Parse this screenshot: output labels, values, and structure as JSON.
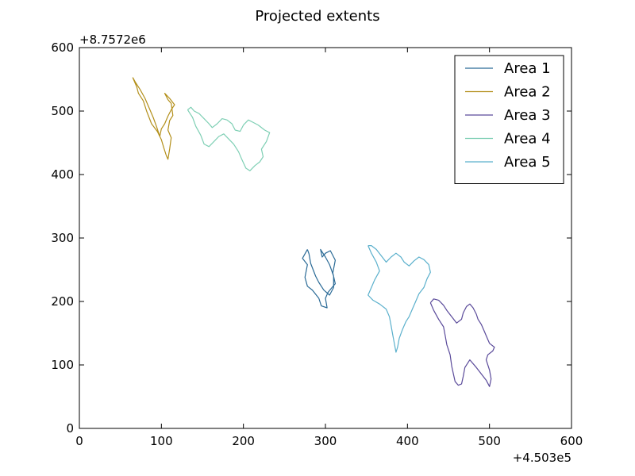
{
  "chart_data": {
    "type": "line",
    "title": "Projected extents",
    "xlabel": "",
    "ylabel": "",
    "xlim": [
      0,
      600
    ],
    "ylim": [
      0,
      600
    ],
    "x_ticks": [
      0,
      100,
      200,
      300,
      400,
      500,
      600
    ],
    "y_ticks": [
      0,
      100,
      200,
      300,
      400,
      500,
      600
    ],
    "x_offset_label": "+4.503e5",
    "y_offset_label": "+8.7572e6",
    "grid": false,
    "legend_position": "top-right",
    "series": [
      {
        "name": "Area 1",
        "color": "#2a6a96",
        "points": [
          [
            278,
            282
          ],
          [
            272,
            268
          ],
          [
            278,
            258
          ],
          [
            275,
            238
          ],
          [
            278,
            224
          ],
          [
            284,
            218
          ],
          [
            292,
            205
          ],
          [
            295,
            193
          ],
          [
            302,
            190
          ],
          [
            300,
            205
          ],
          [
            303,
            214
          ],
          [
            308,
            222
          ],
          [
            312,
            228
          ],
          [
            309,
            245
          ],
          [
            312,
            265
          ],
          [
            306,
            280
          ],
          [
            300,
            276
          ],
          [
            296,
            270
          ],
          [
            294,
            282
          ],
          [
            300,
            270
          ],
          [
            305,
            258
          ],
          [
            310,
            240
          ],
          [
            310,
            222
          ],
          [
            305,
            210
          ],
          [
            298,
            218
          ],
          [
            292,
            230
          ],
          [
            288,
            240
          ],
          [
            282,
            260
          ],
          [
            280,
            275
          ],
          [
            278,
            282
          ]
        ]
      },
      {
        "name": "Area 2",
        "color": "#b38f1a",
        "points": [
          [
            65,
            553
          ],
          [
            70,
            538
          ],
          [
            72,
            528
          ],
          [
            78,
            516
          ],
          [
            82,
            500
          ],
          [
            88,
            480
          ],
          [
            95,
            468
          ],
          [
            100,
            455
          ],
          [
            103,
            442
          ],
          [
            106,
            430
          ],
          [
            108,
            424
          ],
          [
            110,
            440
          ],
          [
            112,
            458
          ],
          [
            108,
            470
          ],
          [
            110,
            485
          ],
          [
            114,
            493
          ],
          [
            112,
            512
          ],
          [
            108,
            518
          ],
          [
            104,
            528
          ],
          [
            110,
            520
          ],
          [
            116,
            510
          ],
          [
            112,
            502
          ],
          [
            108,
            492
          ],
          [
            104,
            480
          ],
          [
            100,
            472
          ],
          [
            98,
            460
          ],
          [
            94,
            476
          ],
          [
            90,
            490
          ],
          [
            86,
            502
          ],
          [
            80,
            520
          ],
          [
            74,
            534
          ],
          [
            68,
            546
          ],
          [
            65,
            553
          ]
        ]
      },
      {
        "name": "Area 3",
        "color": "#5a4a9a",
        "points": [
          [
            428,
            198
          ],
          [
            432,
            186
          ],
          [
            438,
            172
          ],
          [
            444,
            160
          ],
          [
            446,
            146
          ],
          [
            448,
            132
          ],
          [
            452,
            116
          ],
          [
            454,
            98
          ],
          [
            456,
            86
          ],
          [
            458,
            74
          ],
          [
            462,
            68
          ],
          [
            466,
            70
          ],
          [
            468,
            82
          ],
          [
            470,
            96
          ],
          [
            476,
            108
          ],
          [
            484,
            96
          ],
          [
            490,
            86
          ],
          [
            496,
            76
          ],
          [
            500,
            66
          ],
          [
            502,
            78
          ],
          [
            500,
            92
          ],
          [
            496,
            108
          ],
          [
            498,
            116
          ],
          [
            504,
            122
          ],
          [
            506,
            128
          ],
          [
            500,
            134
          ],
          [
            498,
            140
          ],
          [
            494,
            152
          ],
          [
            490,
            164
          ],
          [
            486,
            172
          ],
          [
            484,
            180
          ],
          [
            480,
            190
          ],
          [
            476,
            196
          ],
          [
            472,
            192
          ],
          [
            468,
            182
          ],
          [
            466,
            172
          ],
          [
            460,
            166
          ],
          [
            454,
            176
          ],
          [
            448,
            186
          ],
          [
            444,
            194
          ],
          [
            438,
            202
          ],
          [
            432,
            204
          ],
          [
            428,
            198
          ]
        ]
      },
      {
        "name": "Area 4",
        "color": "#7ecfb4",
        "points": [
          [
            132,
            502
          ],
          [
            138,
            490
          ],
          [
            142,
            476
          ],
          [
            148,
            462
          ],
          [
            152,
            448
          ],
          [
            158,
            444
          ],
          [
            164,
            452
          ],
          [
            170,
            460
          ],
          [
            176,
            464
          ],
          [
            182,
            456
          ],
          [
            188,
            448
          ],
          [
            194,
            436
          ],
          [
            198,
            424
          ],
          [
            203,
            410
          ],
          [
            208,
            406
          ],
          [
            214,
            414
          ],
          [
            220,
            420
          ],
          [
            224,
            428
          ],
          [
            222,
            440
          ],
          [
            228,
            452
          ],
          [
            232,
            466
          ],
          [
            226,
            470
          ],
          [
            218,
            478
          ],
          [
            212,
            482
          ],
          [
            206,
            486
          ],
          [
            200,
            478
          ],
          [
            196,
            468
          ],
          [
            190,
            470
          ],
          [
            186,
            480
          ],
          [
            180,
            486
          ],
          [
            174,
            488
          ],
          [
            168,
            480
          ],
          [
            162,
            474
          ],
          [
            158,
            480
          ],
          [
            152,
            488
          ],
          [
            146,
            496
          ],
          [
            140,
            500
          ],
          [
            136,
            506
          ],
          [
            132,
            502
          ]
        ]
      },
      {
        "name": "Area 5",
        "color": "#5bb0cc",
        "points": [
          [
            352,
            288
          ],
          [
            356,
            276
          ],
          [
            362,
            262
          ],
          [
            366,
            248
          ],
          [
            360,
            234
          ],
          [
            356,
            222
          ],
          [
            352,
            210
          ],
          [
            358,
            202
          ],
          [
            366,
            196
          ],
          [
            374,
            188
          ],
          [
            378,
            176
          ],
          [
            380,
            162
          ],
          [
            382,
            148
          ],
          [
            384,
            134
          ],
          [
            386,
            120
          ],
          [
            388,
            128
          ],
          [
            390,
            142
          ],
          [
            394,
            156
          ],
          [
            398,
            168
          ],
          [
            402,
            176
          ],
          [
            406,
            188
          ],
          [
            410,
            200
          ],
          [
            414,
            212
          ],
          [
            420,
            222
          ],
          [
            424,
            236
          ],
          [
            428,
            246
          ],
          [
            426,
            258
          ],
          [
            420,
            266
          ],
          [
            414,
            270
          ],
          [
            408,
            264
          ],
          [
            402,
            256
          ],
          [
            396,
            262
          ],
          [
            392,
            270
          ],
          [
            386,
            276
          ],
          [
            380,
            270
          ],
          [
            374,
            262
          ],
          [
            368,
            272
          ],
          [
            362,
            282
          ],
          [
            356,
            288
          ],
          [
            352,
            288
          ]
        ]
      }
    ]
  }
}
